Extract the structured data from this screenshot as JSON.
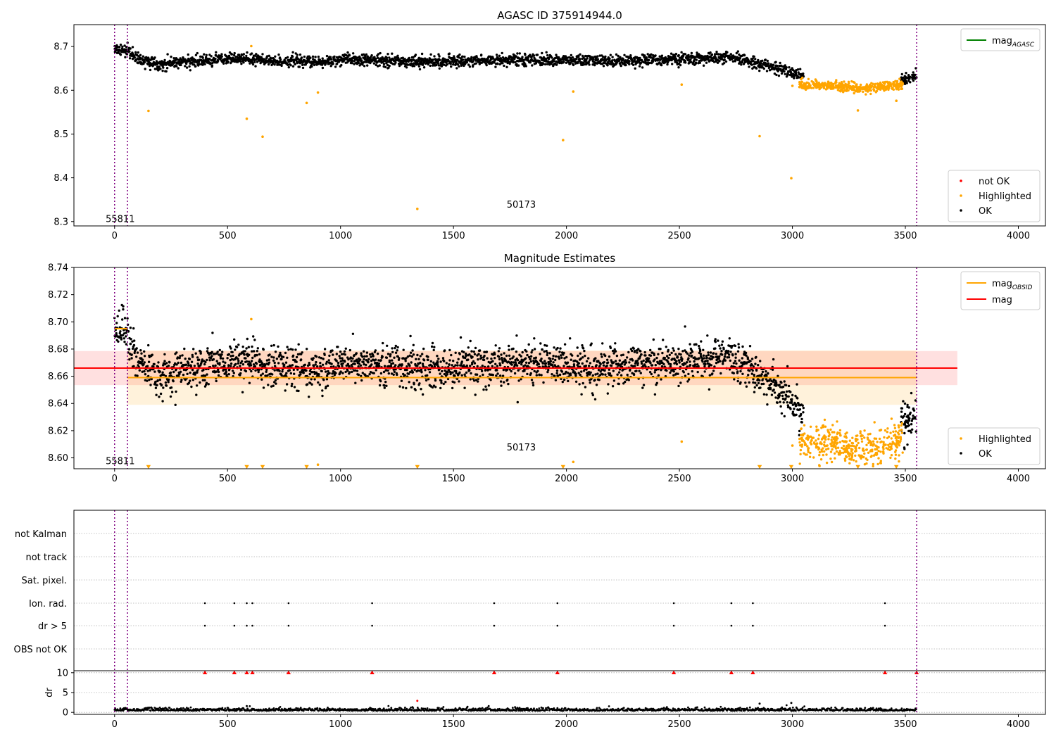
{
  "chart_data": [
    {
      "type": "scatter",
      "title": "AGASC ID 375914944.0",
      "xlim": [
        -180,
        4120
      ],
      "ylim": [
        8.29,
        8.75
      ],
      "xticks": [
        0,
        500,
        1000,
        1500,
        2000,
        2500,
        3000,
        3500,
        4000
      ],
      "xtick_labels": [
        "0",
        "500",
        "1000",
        "1500",
        "2000",
        "2500",
        "3000",
        "3500",
        "4000"
      ],
      "yticks": [
        8.3,
        8.4,
        8.5,
        8.6,
        8.7
      ],
      "ytick_labels": [
        "8.3",
        "8.4",
        "8.5",
        "8.6",
        "8.7"
      ],
      "vlines": [
        0,
        57,
        3550
      ],
      "annotations": [
        {
          "text": "55811",
          "x": 25,
          "y": 8.305
        },
        {
          "text": "50173",
          "x": 1800,
          "y": 8.338
        }
      ],
      "legend_lines": {
        "placement": "upper-right",
        "entries": [
          {
            "label": "mag",
            "subscript": "AGASC",
            "color": "#008000"
          }
        ]
      },
      "legend_markers": {
        "placement": "lower-right",
        "entries": [
          {
            "label": "not OK",
            "color": "#ff0000"
          },
          {
            "label": "Highlighted",
            "color": "#ffa500"
          },
          {
            "label": "OK",
            "color": "#000000"
          }
        ]
      },
      "series": [
        {
          "name": "OK",
          "color": "#000000",
          "profile_x": [
            0,
            60,
            100,
            200,
            300,
            400,
            500,
            600,
            700,
            800,
            900,
            1000,
            1200,
            1400,
            1600,
            1800,
            2000,
            2200,
            2400,
            2600,
            2700,
            2800,
            2900,
            3000,
            3050,
            3500,
            3550
          ],
          "profile_y": [
            8.695,
            8.69,
            8.672,
            8.66,
            8.665,
            8.668,
            8.67,
            8.672,
            8.665,
            8.668,
            8.663,
            8.67,
            8.668,
            8.665,
            8.668,
            8.67,
            8.668,
            8.667,
            8.67,
            8.672,
            8.675,
            8.668,
            8.655,
            8.64,
            8.63,
            8.625,
            8.635
          ],
          "x_range": [
            0,
            3050
          ],
          "extra_x_range": [
            3480,
            3550
          ],
          "count": 2300,
          "scatter": 0.008
        },
        {
          "name": "Highlighted",
          "color": "#ffa500",
          "x_range": [
            3030,
            3490
          ],
          "center": 8.612,
          "count": 420,
          "scatter": 0.008,
          "outliers": [
            [
              150,
              8.553
            ],
            [
              585,
              8.535
            ],
            [
              605,
              8.701
            ],
            [
              655,
              8.494
            ],
            [
              850,
              8.571
            ],
            [
              900,
              8.595
            ],
            [
              1340,
              8.329
            ],
            [
              1985,
              8.486
            ],
            [
              2030,
              8.597
            ],
            [
              2510,
              8.613
            ],
            [
              2855,
              8.495
            ],
            [
              2995,
              8.399
            ],
            [
              3000,
              8.61
            ],
            [
              3290,
              8.554
            ],
            [
              3460,
              8.576
            ]
          ]
        }
      ]
    },
    {
      "type": "scatter",
      "title": "Magnitude Estimates",
      "xlim": [
        -180,
        4120
      ],
      "ylim": [
        8.592,
        8.74
      ],
      "xticks": [
        0,
        500,
        1000,
        1500,
        2000,
        2500,
        3000,
        3500,
        4000
      ],
      "xtick_labels": [
        "0",
        "500",
        "1000",
        "1500",
        "2000",
        "2500",
        "3000",
        "3500",
        "4000"
      ],
      "yticks": [
        8.6,
        8.62,
        8.64,
        8.66,
        8.68,
        8.7,
        8.72,
        8.74
      ],
      "ytick_labels": [
        "8.60",
        "8.62",
        "8.64",
        "8.66",
        "8.68",
        "8.70",
        "8.72",
        "8.74"
      ],
      "vlines": [
        0,
        57,
        3550
      ],
      "annotations": [
        {
          "text": "55811",
          "x": 25,
          "y": 8.5975
        },
        {
          "text": "50173",
          "x": 1800,
          "y": 8.6075
        }
      ],
      "bands": [
        {
          "x0": -180,
          "x1": 3730,
          "y0": 8.6535,
          "y1": 8.6785,
          "color": "#ff0000",
          "alpha": 0.12
        },
        {
          "x0": 57,
          "x1": 3550,
          "y0": 8.639,
          "y1": 8.679,
          "color": "#ffa500",
          "alpha": 0.14
        }
      ],
      "lines": [
        {
          "name": "mag",
          "color": "#ff0000",
          "x": [
            -180,
            3730
          ],
          "y": [
            8.666,
            8.666
          ]
        },
        {
          "name": "mag_OBSID",
          "color": "#ffa500",
          "x": [
            57,
            3550
          ],
          "y": [
            8.659,
            8.659
          ]
        },
        {
          "name": "mag_OBSID",
          "color": "#ffa500",
          "x": [
            0,
            57
          ],
          "y": [
            8.695,
            8.695
          ]
        }
      ],
      "legend_lines": {
        "placement": "upper-right",
        "entries": [
          {
            "label": "mag",
            "subscript": "OBSID",
            "color": "#ffa500"
          },
          {
            "label": "mag",
            "subscript": "",
            "color": "#ff0000"
          }
        ]
      },
      "legend_markers": {
        "placement": "lower-right",
        "entries": [
          {
            "label": "Highlighted",
            "color": "#ffa500"
          },
          {
            "label": "OK",
            "color": "#000000"
          }
        ]
      },
      "series": [
        {
          "name": "OK",
          "color": "#000000",
          "profile_x": [
            0,
            60,
            100,
            200,
            300,
            400,
            500,
            600,
            700,
            800,
            900,
            1000,
            1200,
            1400,
            1600,
            1800,
            2000,
            2200,
            2400,
            2600,
            2700,
            2800,
            2900,
            3000,
            3050,
            3500,
            3550
          ],
          "profile_y": [
            8.695,
            8.69,
            8.672,
            8.66,
            8.665,
            8.668,
            8.67,
            8.672,
            8.665,
            8.668,
            8.663,
            8.67,
            8.668,
            8.665,
            8.668,
            8.67,
            8.668,
            8.667,
            8.67,
            8.672,
            8.675,
            8.668,
            8.655,
            8.64,
            8.63,
            8.625,
            8.635
          ],
          "x_range": [
            0,
            3050
          ],
          "extra_x_range": [
            3480,
            3550
          ],
          "count": 2300,
          "scatter": 0.009
        },
        {
          "name": "Highlighted",
          "color": "#ffa500",
          "x_range": [
            3030,
            3490
          ],
          "center": 8.612,
          "count": 420,
          "scatter": 0.009,
          "markers_at_floor": [
            150,
            585,
            655,
            850,
            1340,
            1985,
            2855,
            2995,
            3290,
            3460
          ],
          "outliers": [
            [
              605,
              8.702
            ],
            [
              900,
              8.595
            ],
            [
              2030,
              8.597
            ],
            [
              2510,
              8.612
            ],
            [
              3000,
              8.609
            ],
            [
              3120,
              8.594
            ]
          ]
        }
      ]
    },
    {
      "type": "scatter",
      "title": "",
      "xlim": [
        -180,
        4120
      ],
      "flag_rows": [
        "not Kalman",
        "not track",
        "Sat. pixel.",
        "Ion. rad.",
        "dr > 5",
        "OBS not OK"
      ],
      "flag_events": {
        "Ion. rad.": [
          400,
          530,
          585,
          610,
          770,
          1140,
          1680,
          1960,
          2475,
          2730,
          2825,
          3410
        ],
        "dr > 5": [
          400,
          530,
          585,
          610,
          770,
          1140,
          1680,
          1960,
          2475,
          2730,
          2825,
          3410
        ]
      },
      "dr_panel": {
        "ylabel": "dr",
        "ylim": [
          -0.5,
          10.5
        ],
        "yticks": [
          0,
          5,
          10
        ],
        "ytick_labels": [
          "0",
          "5",
          "10"
        ],
        "clipped_at_top_x": [
          400,
          530,
          585,
          610,
          770,
          1140,
          1680,
          1960,
          2475,
          2730,
          2825,
          3410,
          3550
        ],
        "outliers": [
          [
            1340,
            2.9
          ],
          [
            585,
            1.6
          ],
          [
            2855,
            2.2
          ],
          [
            2995,
            2.4
          ]
        ],
        "baseline": 0.4
      },
      "xticks": [
        0,
        500,
        1000,
        1500,
        2000,
        2500,
        3000,
        3500,
        4000
      ],
      "xtick_labels": [
        "0",
        "500",
        "1000",
        "1500",
        "2000",
        "2500",
        "3000",
        "3500",
        "4000"
      ],
      "vlines": [
        0,
        57,
        3550
      ]
    }
  ]
}
